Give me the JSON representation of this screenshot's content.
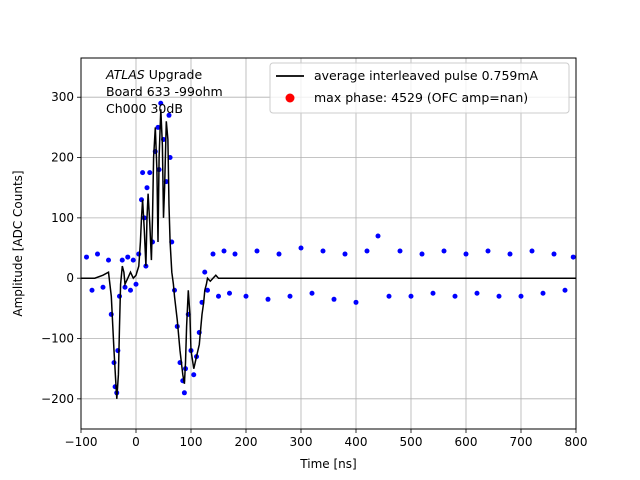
{
  "chart_data": {
    "type": "scatter",
    "title": "",
    "xlabel": "Time [ns]",
    "ylabel": "Amplitude [ADC Counts]",
    "xlim": [
      -100,
      800
    ],
    "ylim": [
      -250,
      365
    ],
    "xticks": [
      -100,
      0,
      100,
      200,
      300,
      400,
      500,
      600,
      700,
      800
    ],
    "yticks": [
      -200,
      -100,
      0,
      100,
      200,
      300
    ],
    "grid": true,
    "legend_position": "top-right",
    "annotation": {
      "lines": [
        "ATLAS",
        " Upgrade",
        " Board 633 -99ohm",
        " Ch000 30dB"
      ]
    },
    "series": [
      {
        "name": "average interleaved pulse 0.759mA",
        "kind": "line",
        "color": "#000000",
        "x": [
          -100,
          -75,
          -60,
          -50,
          -45,
          -40,
          -37,
          -35,
          -32,
          -30,
          -28,
          -25,
          -22,
          -20,
          -15,
          -10,
          -5,
          0,
          5,
          8,
          10,
          12,
          15,
          18,
          20,
          22,
          25,
          28,
          30,
          32,
          35,
          38,
          40,
          42,
          45,
          48,
          50,
          52,
          55,
          58,
          60,
          62,
          65,
          68,
          70,
          75,
          80,
          85,
          88,
          90,
          92,
          95,
          98,
          100,
          105,
          110,
          115,
          118,
          120,
          123,
          125,
          128,
          130,
          135,
          140,
          145,
          150,
          160,
          170,
          180,
          200,
          250,
          300,
          400,
          500,
          600,
          700,
          800
        ],
        "y": [
          0,
          0,
          5,
          10,
          -30,
          -120,
          -170,
          -200,
          -160,
          -80,
          -10,
          20,
          10,
          -10,
          0,
          10,
          0,
          5,
          20,
          60,
          100,
          130,
          80,
          20,
          100,
          140,
          90,
          30,
          100,
          200,
          250,
          180,
          60,
          200,
          280,
          220,
          100,
          150,
          260,
          230,
          120,
          60,
          10,
          -10,
          -30,
          -70,
          -120,
          -160,
          -175,
          -140,
          -80,
          -20,
          -60,
          -120,
          -150,
          -130,
          -110,
          -80,
          -60,
          -40,
          -20,
          -10,
          0,
          -5,
          0,
          5,
          0,
          0,
          0,
          0,
          0,
          0,
          0,
          0,
          0,
          0,
          0,
          0
        ]
      },
      {
        "name": "max phase: 4529 (OFC amp=nan)",
        "kind": "scatter",
        "color": "#ff0000",
        "x": [],
        "y": []
      },
      {
        "name": "",
        "kind": "scatter",
        "color": "#0000ff",
        "x": [
          -90,
          -80,
          -70,
          -60,
          -50,
          -45,
          -40,
          -38,
          -35,
          -33,
          -30,
          -25,
          -20,
          -15,
          -10,
          -5,
          0,
          5,
          10,
          12,
          15,
          18,
          20,
          25,
          30,
          35,
          40,
          42,
          45,
          50,
          55,
          60,
          62,
          65,
          70,
          75,
          80,
          85,
          88,
          90,
          95,
          100,
          105,
          110,
          115,
          120,
          125,
          130,
          140,
          150,
          160,
          170,
          180,
          200,
          220,
          240,
          260,
          280,
          300,
          320,
          340,
          360,
          380,
          400,
          420,
          440,
          460,
          480,
          500,
          520,
          540,
          560,
          580,
          600,
          620,
          640,
          660,
          680,
          700,
          720,
          740,
          760,
          780,
          795
        ],
        "y": [
          35,
          -20,
          40,
          -15,
          30,
          -60,
          -140,
          -180,
          -190,
          -120,
          -30,
          30,
          -15,
          35,
          -20,
          30,
          -10,
          40,
          130,
          175,
          100,
          20,
          150,
          175,
          60,
          210,
          250,
          180,
          290,
          230,
          160,
          270,
          200,
          60,
          -20,
          -80,
          -140,
          -170,
          -190,
          -150,
          -60,
          -120,
          -160,
          -130,
          -90,
          -40,
          10,
          -20,
          40,
          -30,
          45,
          -25,
          40,
          -30,
          45,
          -35,
          40,
          -30,
          50,
          -25,
          45,
          -35,
          40,
          -40,
          45,
          70,
          -30,
          45,
          -30,
          40,
          -25,
          45,
          -30,
          40,
          -25,
          45,
          -30,
          40,
          -30,
          45,
          -25,
          40,
          -20,
          35
        ]
      }
    ]
  }
}
